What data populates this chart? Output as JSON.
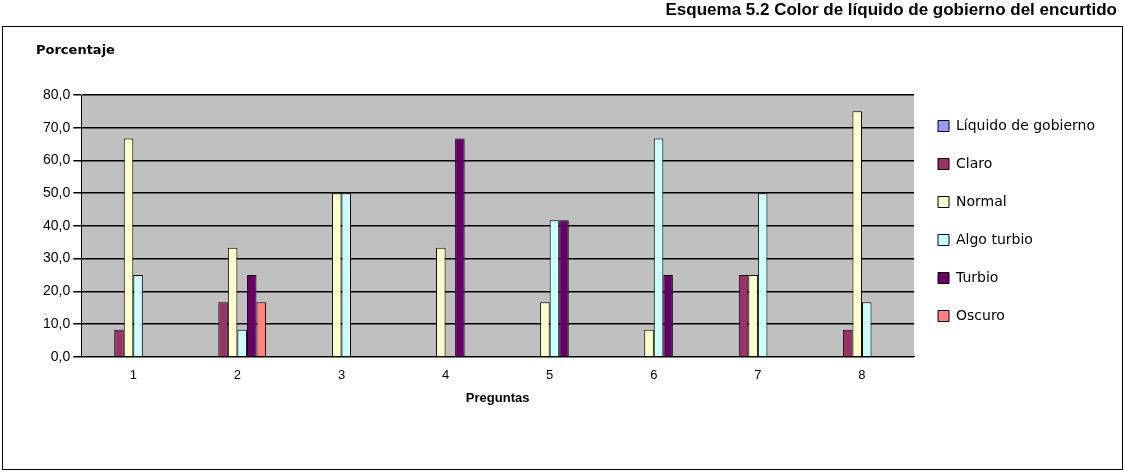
{
  "chart_data": {
    "type": "bar",
    "title": "Esquema 5.2 Color de líquido de gobierno del encurtido",
    "xlabel": "Preguntas",
    "ylabel": "Porcentaje",
    "categories": [
      "1",
      "2",
      "3",
      "4",
      "5",
      "6",
      "7",
      "8"
    ],
    "series": [
      {
        "name": "Líquido de gobierno",
        "color": "#9999ff",
        "values": [
          null,
          null,
          null,
          null,
          null,
          null,
          null,
          null
        ]
      },
      {
        "name": "Claro",
        "color": "#993366",
        "values": [
          8.3,
          16.7,
          null,
          null,
          null,
          null,
          25,
          8.3
        ]
      },
      {
        "name": "Normal",
        "color": "#ffffcc",
        "values": [
          66.7,
          33.3,
          50,
          33.3,
          16.7,
          8.3,
          25,
          75
        ]
      },
      {
        "name": "Algo turbio",
        "color": "#ccffff",
        "values": [
          25,
          8.3,
          50,
          null,
          41.7,
          66.7,
          50,
          16.7
        ]
      },
      {
        "name": "Turbio",
        "color": "#660066",
        "values": [
          null,
          25,
          null,
          66.7,
          41.7,
          25,
          null,
          null
        ]
      },
      {
        "name": "Oscuro",
        "color": "#ff8080",
        "values": [
          null,
          16.7,
          null,
          null,
          null,
          null,
          null,
          null
        ]
      }
    ],
    "ylim": [
      0,
      80
    ],
    "yticks": [
      {
        "value": 0,
        "label": "0,0"
      },
      {
        "value": 10,
        "label": "10,0"
      },
      {
        "value": 20,
        "label": "20,0"
      },
      {
        "value": 30,
        "label": "30,0"
      },
      {
        "value": 40,
        "label": "40,0"
      },
      {
        "value": 50,
        "label": "50,0"
      },
      {
        "value": 60,
        "label": "60,0"
      },
      {
        "value": 70,
        "label": "70,0"
      },
      {
        "value": 80,
        "label": "80,0"
      }
    ],
    "grid": "y",
    "legend": "right"
  }
}
